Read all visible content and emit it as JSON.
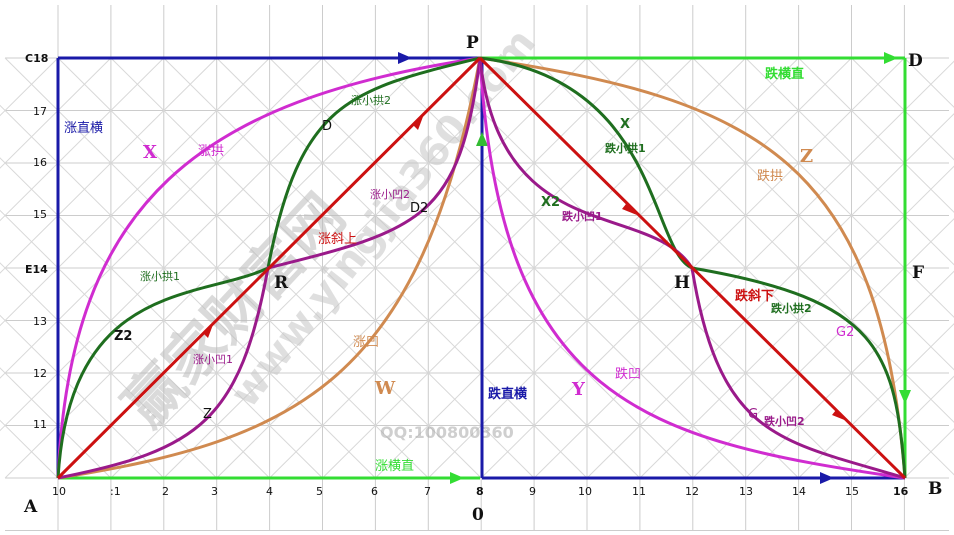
{
  "colors": {
    "blue": "#1a1aa8",
    "green": "#33dd33",
    "red": "#cc1111",
    "darkgreen": "#1f6e1f",
    "magenta": "#d02cd0",
    "purple": "#9a1a8a",
    "orange": "#d08a50",
    "watermark": "#bdbdbd"
  },
  "axis": {
    "left_ticks": [
      "C18",
      "17",
      "16",
      "15",
      "E14",
      "13",
      "12",
      "11"
    ],
    "bottom_ticks": [
      "10",
      ":1",
      "2",
      "3",
      "4",
      "5",
      "6",
      "7",
      "8",
      "9",
      "10",
      "11",
      "12",
      "13",
      "14",
      "15",
      "16"
    ]
  },
  "points": {
    "A": "A",
    "B": "B",
    "P": "P",
    "D": "D",
    "F": "F",
    "O": "0",
    "R": "R",
    "H": "H"
  },
  "labels": {
    "rise_vertical_horizontal": "涨直横",
    "rise_horizontal_vertical": "涨横直",
    "fall_horizontal_vertical": "跌横直",
    "fall_vertical_horizontal": "跌直横",
    "rise_arch": "涨拱",
    "fall_arch": "跌拱",
    "rise_concave": "涨凹",
    "fall_concave": "跌凹",
    "rise_slant": "涨斜上",
    "fall_slant": "跌斜下",
    "rise_small_arch1": "涨小拱1",
    "rise_small_arch2": "涨小拱2",
    "rise_small_concave1": "涨小凹1",
    "rise_small_concave2": "涨小凹2",
    "fall_small_arch1": "跌小拱1",
    "fall_small_arch2": "跌小拱2",
    "fall_small_concave1": "跌小凹1",
    "fall_small_concave2": "跌小凹2",
    "X": "X",
    "X_right": "X",
    "X2": "X2",
    "Z": "Z",
    "Z_right": "Z",
    "Z2": "Z2",
    "W": "W",
    "Y": "Y",
    "D_small": "D",
    "D2": "D2",
    "G": "G",
    "G2": "G2"
  },
  "watermark": {
    "cn": "赢家财富网",
    "url": "www.yingjia360.com",
    "qq": "QQ:100800360"
  }
}
